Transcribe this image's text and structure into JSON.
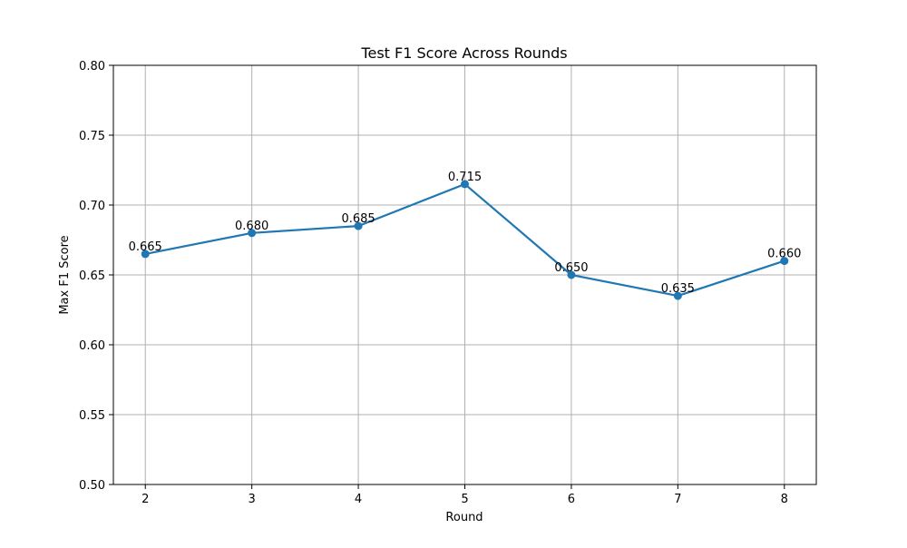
{
  "chart_data": {
    "type": "line",
    "title": "Test F1 Score Across Rounds",
    "xlabel": "Round",
    "ylabel": "Max F1 Score",
    "x": [
      2,
      3,
      4,
      5,
      6,
      7,
      8
    ],
    "xlim": [
      1.7,
      8.3
    ],
    "ylim": [
      0.5,
      0.8
    ],
    "yticks": [
      0.5,
      0.55,
      0.6,
      0.65,
      0.7,
      0.75,
      0.8
    ],
    "ytick_labels": [
      "0.50",
      "0.55",
      "0.60",
      "0.65",
      "0.70",
      "0.75",
      "0.80"
    ],
    "xticks": [
      2,
      3,
      4,
      5,
      6,
      7,
      8
    ],
    "xtick_labels": [
      "2",
      "3",
      "4",
      "5",
      "6",
      "7",
      "8"
    ],
    "grid": true,
    "series": [
      {
        "values": [
          0.665,
          0.68,
          0.685,
          0.715,
          0.65,
          0.635,
          0.66
        ],
        "data_labels": [
          "0.665",
          "0.680",
          "0.685",
          "0.715",
          "0.650",
          "0.635",
          "0.660"
        ],
        "color": "#1f77b4",
        "marker": "circle"
      }
    ],
    "colors": {
      "line": "#1f77b4",
      "grid": "#b0b0b0",
      "axes": "#000000"
    }
  }
}
